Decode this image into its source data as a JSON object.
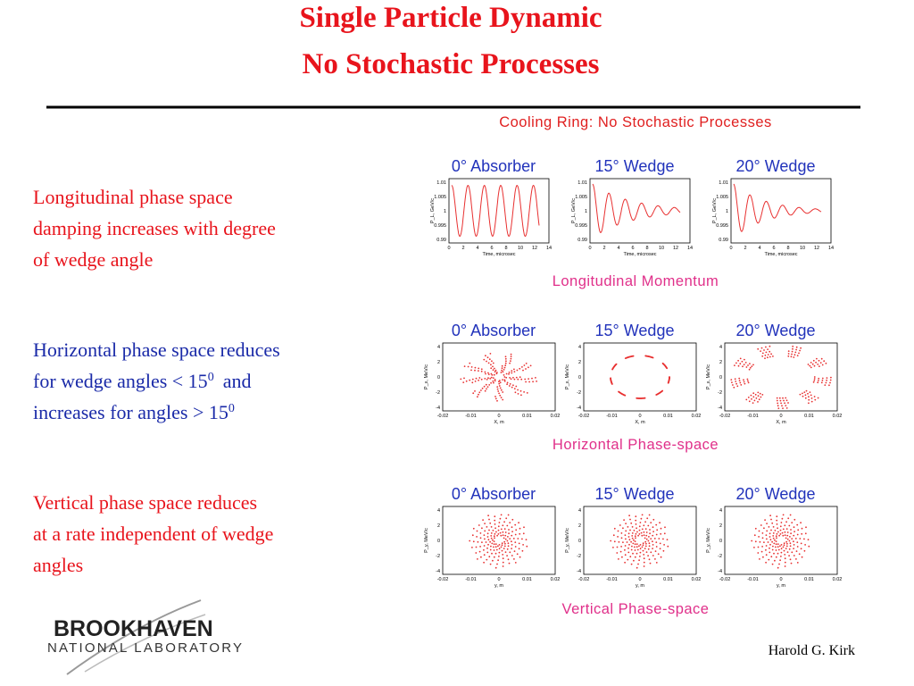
{
  "header": {
    "title_lines": [
      "Single Particle Dynamic",
      "No Stochastic Processes"
    ]
  },
  "bullets": [
    {
      "lines": [
        {
          "text": "Longitudinal phase space"
        },
        {
          "text": "damping increases with degree"
        },
        {
          "text": "of wedge angle"
        }
      ]
    },
    {
      "lines": [
        {
          "text": "Horizontal phase space reduces"
        },
        {
          "text": "for wedge angles < 15",
          "sup": "0",
          "tail": "and"
        },
        {
          "text": "increases for angles > 15",
          "sup": "0"
        }
      ]
    },
    {
      "lines": [
        {
          "text": "Vertical phase space reduces"
        },
        {
          "text": "at a rate independent of wedge"
        },
        {
          "text": "angles"
        }
      ]
    }
  ],
  "figure": {
    "title": "Cooling Ring:  No Stochastic Processes",
    "rows": [
      {
        "panels": [
          "0° Absorber",
          "15° Wedge",
          "20° Wedge"
        ],
        "caption": "Longitudinal Momentum",
        "xlabel": "Time, microsec",
        "ylabel": "P_L, GeV/c",
        "xticks": [
          "0",
          "2",
          "4",
          "6",
          "8",
          "10",
          "12",
          "14"
        ],
        "yticks": [
          "1.01",
          "1.005",
          "1",
          "0.995",
          "0.99"
        ]
      },
      {
        "panels": [
          "0° Absorber",
          "15° Wedge",
          "20° Wedge"
        ],
        "caption": "Horizontal Phase-space",
        "xlabel": "X, m",
        "ylabel": "P_x, MeV/c",
        "xticks": [
          "-0.02",
          "-0.01",
          "0",
          "0.01",
          "0.02"
        ],
        "yticks": [
          "4",
          "2",
          "0",
          "-2",
          "-4"
        ]
      },
      {
        "panels": [
          "0° Absorber",
          "15° Wedge",
          "20° Wedge"
        ],
        "caption": "Vertical Phase-space",
        "xlabel": "y, m",
        "ylabel": "P_y, MeV/c",
        "xticks": [
          "-0.02",
          "-0.01",
          "0",
          "0.01",
          "0.02"
        ],
        "yticks": [
          "4",
          "2",
          "0",
          "-2",
          "-4"
        ]
      }
    ]
  },
  "footer": {
    "logo_top": "BROOKHAVEN",
    "logo_bottom": "NATIONAL LABORATORY",
    "author": "Harold G. Kirk"
  }
}
